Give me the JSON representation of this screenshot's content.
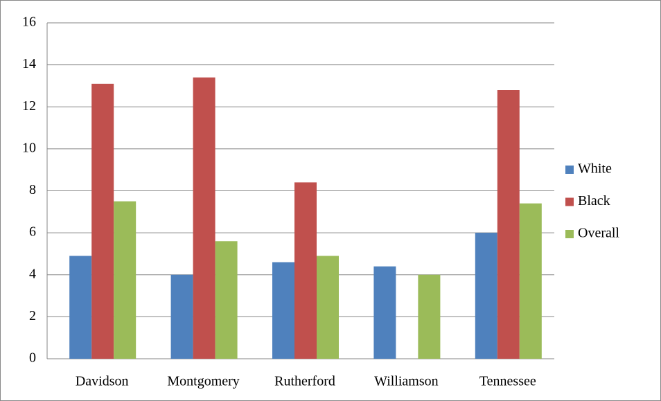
{
  "chart_data": {
    "type": "bar",
    "categories": [
      "Davidson",
      "Montgomery",
      "Rutherford",
      "Williamson",
      "Tennessee"
    ],
    "series": [
      {
        "name": "White",
        "color": "#4f81bd",
        "values": [
          4.9,
          4.0,
          4.6,
          4.4,
          6.0
        ]
      },
      {
        "name": "Black",
        "color": "#c0504d",
        "values": [
          13.1,
          13.4,
          8.4,
          null,
          12.8
        ]
      },
      {
        "name": "Overall",
        "color": "#9bbb59",
        "values": [
          7.5,
          5.6,
          4.9,
          4.0,
          7.4
        ]
      }
    ],
    "ylim": [
      0,
      16
    ],
    "yticks": [
      0,
      2,
      4,
      6,
      8,
      10,
      12,
      14,
      16
    ],
    "grid": true,
    "legend": "right"
  }
}
